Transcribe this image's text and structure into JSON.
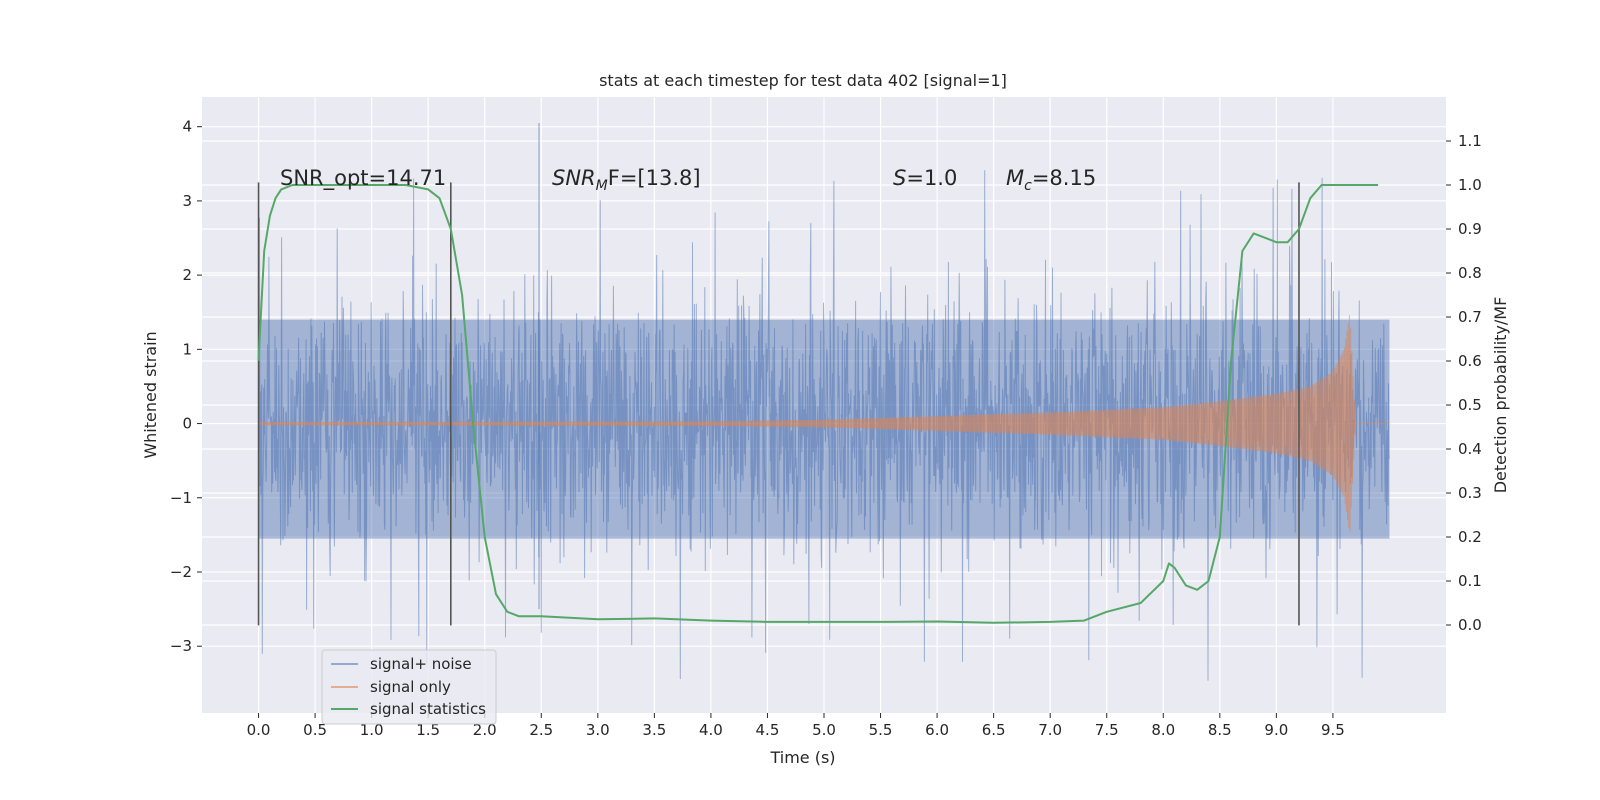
{
  "chart_data": {
    "type": "line",
    "title": "stats at each timestep for test data 402 [signal=1]",
    "xlabel": "Time (s)",
    "ylabel": "Whitened strain",
    "ylabel_right": "Detection probability/MF",
    "xlim": [
      -0.5,
      10.5
    ],
    "ylim": [
      -3.9,
      4.4
    ],
    "ylim_right": [
      -0.2,
      1.2
    ],
    "x_ticks": [
      0.0,
      0.5,
      1.0,
      1.5,
      2.0,
      2.5,
      3.0,
      3.5,
      4.0,
      4.5,
      5.0,
      5.5,
      6.0,
      6.5,
      7.0,
      7.5,
      8.0,
      8.5,
      9.0,
      9.5
    ],
    "x_tick_labels": [
      "0.0",
      "0.5",
      "1.0",
      "1.5",
      "2.0",
      "2.5",
      "3.0",
      "3.5",
      "4.0",
      "4.5",
      "5.0",
      "5.5",
      "6.0",
      "6.5",
      "7.0",
      "7.5",
      "8.0",
      "8.5",
      "9.0",
      "9.5"
    ],
    "y_ticks": [
      -3,
      -2,
      -1,
      0,
      1,
      2,
      3,
      4
    ],
    "y_tick_labels": [
      "−3",
      "−2",
      "−1",
      "0",
      "1",
      "2",
      "3",
      "4"
    ],
    "y_ticks_right": [
      0.0,
      0.1,
      0.2,
      0.3,
      0.4,
      0.5,
      0.6,
      0.7,
      0.8,
      0.9,
      1.0,
      1.1
    ],
    "y_tick_labels_right": [
      "0.0",
      "0.1",
      "0.2",
      "0.3",
      "0.4",
      "0.5",
      "0.6",
      "0.7",
      "0.8",
      "0.9",
      "1.0",
      "1.1"
    ],
    "grid": true,
    "legend_position": "lower-left",
    "annotations": {
      "snr_opt": "SNR_opt=14.71",
      "snr_mf_label": "SNR",
      "snr_mf_sub": "M",
      "snr_mf_rest": "F=[13.8]",
      "s_label": "S",
      "s_value": "=1.0",
      "mc_label": "M",
      "mc_sub": "c",
      "mc_value": "=8.15"
    },
    "vertical_markers_x": [
      0.0,
      1.7,
      9.2
    ],
    "series": [
      {
        "name": "signal+ noise",
        "color": "#4c72b0",
        "axis": "left",
        "description_range": [
          -3.5,
          4.05
        ],
        "x_range": [
          0.0,
          10.0
        ],
        "typical_amplitude": 1.5
      },
      {
        "name": "signal only",
        "color": "#dd8452",
        "axis": "left",
        "x_range": [
          0.0,
          9.7
        ],
        "envelope": {
          "x": [
            0.0,
            4.0,
            5.0,
            6.0,
            7.0,
            8.0,
            8.5,
            9.0,
            9.3,
            9.5,
            9.6,
            9.65,
            9.7
          ],
          "amp": [
            0.02,
            0.03,
            0.05,
            0.1,
            0.15,
            0.22,
            0.3,
            0.4,
            0.5,
            0.7,
            1.0,
            1.5,
            0.0
          ]
        }
      },
      {
        "name": "signal statistics",
        "color": "#55a868",
        "axis": "right",
        "x": [
          0.0,
          0.05,
          0.1,
          0.15,
          0.2,
          0.3,
          0.5,
          1.0,
          1.3,
          1.5,
          1.6,
          1.7,
          1.8,
          1.9,
          2.0,
          2.1,
          2.2,
          2.3,
          2.5,
          3.0,
          3.5,
          4.0,
          4.5,
          5.0,
          5.5,
          6.0,
          6.5,
          7.0,
          7.3,
          7.5,
          7.8,
          8.0,
          8.05,
          8.1,
          8.2,
          8.3,
          8.4,
          8.5,
          8.6,
          8.7,
          8.8,
          8.9,
          9.0,
          9.1,
          9.2,
          9.3,
          9.4,
          9.5,
          9.7,
          9.9
        ],
        "values": [
          0.6,
          0.85,
          0.93,
          0.97,
          0.99,
          1.0,
          1.0,
          1.0,
          1.0,
          0.99,
          0.97,
          0.9,
          0.75,
          0.45,
          0.2,
          0.07,
          0.03,
          0.02,
          0.02,
          0.013,
          0.015,
          0.01,
          0.007,
          0.007,
          0.007,
          0.008,
          0.005,
          0.007,
          0.01,
          0.03,
          0.05,
          0.1,
          0.14,
          0.13,
          0.09,
          0.08,
          0.1,
          0.2,
          0.6,
          0.85,
          0.89,
          0.88,
          0.87,
          0.87,
          0.9,
          0.97,
          1.0,
          1.0,
          1.0,
          1.0
        ]
      }
    ]
  }
}
